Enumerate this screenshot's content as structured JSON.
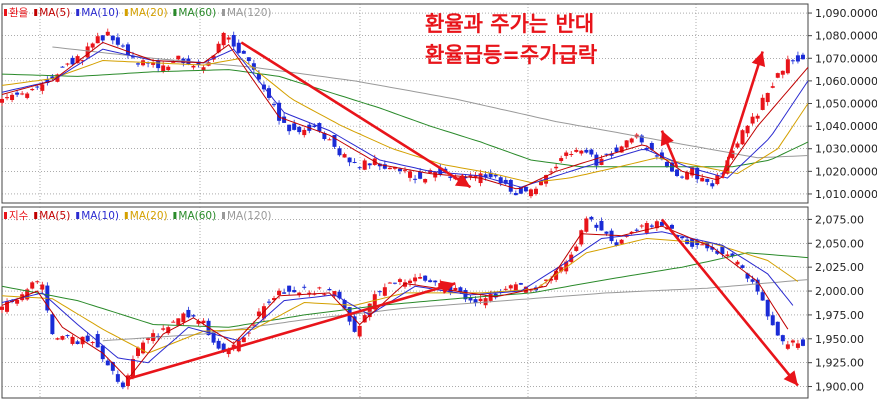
{
  "annotation": {
    "line1": "환율과 주가는 반대",
    "line2": "환율급등=주가급락",
    "color": "#e8141a"
  },
  "colors": {
    "up": "#e8141a",
    "down": "#1a2bd6",
    "ma5": "#c00000",
    "ma10": "#2b2bd0",
    "ma20": "#d4a000",
    "ma60": "#2a8a2a",
    "ma120": "#9a9a9a",
    "arrow": "#e8141a",
    "grid": "#7a7a7a"
  },
  "chart_data": [
    {
      "type": "candlestick",
      "title": "환율",
      "legend": [
        {
          "label": "환율",
          "color": "#e8141a"
        },
        {
          "label": "MA(5)",
          "color": "#c00000"
        },
        {
          "label": "MA(10)",
          "color": "#2b2bd0"
        },
        {
          "label": "MA(20)",
          "color": "#d4a000"
        },
        {
          "label": "MA(60)",
          "color": "#2a8a2a"
        },
        {
          "label": "MA(120)",
          "color": "#9a9a9a"
        }
      ],
      "ylim": [
        1006000,
        1094000
      ],
      "yticks": [
        1010000,
        1020000,
        1030000,
        1040000,
        1050000,
        1060000,
        1070000,
        1080000,
        1090000
      ],
      "ytick_labels": [
        "1,010.0000",
        "1,020.0000",
        "1,030.0000",
        "1,040.0000",
        "1,050.0000",
        "1,060.0000",
        "1,070.0000",
        "1,080.0000",
        "1,090.0000"
      ],
      "close_path": [
        [
          0,
          1052000
        ],
        [
          8,
          1055000
        ],
        [
          14,
          1056000
        ],
        [
          20,
          1062000
        ],
        [
          26,
          1068000
        ],
        [
          32,
          1070000
        ],
        [
          36,
          1078000
        ],
        [
          42,
          1080000
        ],
        [
          48,
          1074000
        ],
        [
          54,
          1068000
        ],
        [
          62,
          1066000
        ],
        [
          70,
          1070000
        ],
        [
          76,
          1066000
        ],
        [
          82,
          1068000
        ],
        [
          88,
          1080000
        ],
        [
          94,
          1074000
        ],
        [
          100,
          1064000
        ],
        [
          106,
          1052000
        ],
        [
          112,
          1040000
        ],
        [
          118,
          1037000
        ],
        [
          124,
          1040000
        ],
        [
          130,
          1034000
        ],
        [
          136,
          1026000
        ],
        [
          142,
          1023000
        ],
        [
          148,
          1024000
        ],
        [
          154,
          1022000
        ],
        [
          160,
          1019000
        ],
        [
          166,
          1017000
        ],
        [
          172,
          1020000
        ],
        [
          178,
          1018000
        ],
        [
          184,
          1016000
        ],
        [
          190,
          1018000
        ],
        [
          196,
          1017000
        ],
        [
          200,
          1014000
        ],
        [
          204,
          1011000
        ],
        [
          208,
          1011000
        ],
        [
          214,
          1015000
        ],
        [
          220,
          1022000
        ],
        [
          224,
          1028000
        ],
        [
          230,
          1030000
        ],
        [
          236,
          1024000
        ],
        [
          242,
          1028000
        ],
        [
          248,
          1034000
        ],
        [
          252,
          1036000
        ],
        [
          256,
          1030000
        ],
        [
          262,
          1026000
        ],
        [
          268,
          1018000
        ],
        [
          274,
          1020000
        ],
        [
          278,
          1016000
        ],
        [
          282,
          1014000
        ],
        [
          286,
          1020000
        ],
        [
          290,
          1030000
        ],
        [
          296,
          1040000
        ],
        [
          300,
          1046000
        ],
        [
          304,
          1056000
        ],
        [
          308,
          1062000
        ],
        [
          312,
          1068000
        ],
        [
          316,
          1070000
        ],
        [
          320,
          1070000
        ]
      ],
      "ma5_path": [
        [
          0,
          1054000
        ],
        [
          20,
          1060000
        ],
        [
          40,
          1077000
        ],
        [
          60,
          1069000
        ],
        [
          80,
          1068000
        ],
        [
          90,
          1076000
        ],
        [
          110,
          1044000
        ],
        [
          130,
          1036000
        ],
        [
          150,
          1023000
        ],
        [
          170,
          1019000
        ],
        [
          190,
          1017000
        ],
        [
          205,
          1012000
        ],
        [
          220,
          1020000
        ],
        [
          240,
          1027000
        ],
        [
          255,
          1032000
        ],
        [
          270,
          1020000
        ],
        [
          285,
          1016000
        ],
        [
          300,
          1040000
        ],
        [
          320,
          1066000
        ]
      ],
      "ma10_path": [
        [
          0,
          1055000
        ],
        [
          20,
          1060000
        ],
        [
          40,
          1074000
        ],
        [
          60,
          1069000
        ],
        [
          80,
          1068000
        ],
        [
          92,
          1074000
        ],
        [
          112,
          1046000
        ],
        [
          130,
          1038000
        ],
        [
          150,
          1025000
        ],
        [
          170,
          1020000
        ],
        [
          190,
          1018000
        ],
        [
          206,
          1013000
        ],
        [
          220,
          1018000
        ],
        [
          240,
          1025000
        ],
        [
          255,
          1030000
        ],
        [
          272,
          1022000
        ],
        [
          288,
          1017000
        ],
        [
          305,
          1035000
        ],
        [
          320,
          1060000
        ]
      ],
      "ma20_path": [
        [
          0,
          1058000
        ],
        [
          20,
          1061000
        ],
        [
          40,
          1069000
        ],
        [
          60,
          1068000
        ],
        [
          80,
          1067000
        ],
        [
          95,
          1070000
        ],
        [
          115,
          1052000
        ],
        [
          135,
          1040000
        ],
        [
          155,
          1030000
        ],
        [
          175,
          1023000
        ],
        [
          195,
          1019000
        ],
        [
          210,
          1015000
        ],
        [
          225,
          1017000
        ],
        [
          245,
          1022000
        ],
        [
          260,
          1026000
        ],
        [
          278,
          1022000
        ],
        [
          292,
          1019000
        ],
        [
          308,
          1030000
        ],
        [
          320,
          1050000
        ]
      ],
      "ma60_path": [
        [
          0,
          1063000
        ],
        [
          30,
          1062000
        ],
        [
          60,
          1064000
        ],
        [
          90,
          1065000
        ],
        [
          110,
          1062000
        ],
        [
          130,
          1055000
        ],
        [
          150,
          1048000
        ],
        [
          170,
          1040000
        ],
        [
          190,
          1033000
        ],
        [
          210,
          1025000
        ],
        [
          230,
          1022000
        ],
        [
          250,
          1022000
        ],
        [
          270,
          1022000
        ],
        [
          290,
          1022000
        ],
        [
          305,
          1025000
        ],
        [
          320,
          1033000
        ]
      ],
      "ma120_path": [
        [
          20,
          1075000
        ],
        [
          60,
          1070000
        ],
        [
          100,
          1066000
        ],
        [
          140,
          1060000
        ],
        [
          180,
          1052000
        ],
        [
          220,
          1042000
        ],
        [
          260,
          1034000
        ],
        [
          300,
          1026000
        ],
        [
          320,
          1027000
        ]
      ],
      "arrows": [
        {
          "from": [
            95,
            1077000
          ],
          "to": [
            186,
            1013000
          ]
        },
        {
          "from": [
            268,
            1022000
          ],
          "to": [
            262,
            1038000
          ],
          "kind": "annotation-pointer"
        },
        {
          "from": [
            286,
            1017000
          ],
          "to": [
            302,
            1073000
          ]
        }
      ]
    },
    {
      "type": "candlestick",
      "title": "지수",
      "legend": [
        {
          "label": "지수",
          "color": "#e8141a"
        },
        {
          "label": "MA(5)",
          "color": "#c00000"
        },
        {
          "label": "MA(10)",
          "color": "#2b2bd0"
        },
        {
          "label": "MA(20)",
          "color": "#d4a000"
        },
        {
          "label": "MA(60)",
          "color": "#2a8a2a"
        },
        {
          "label": "MA(120)",
          "color": "#9a9a9a"
        }
      ],
      "ylim": [
        1888000,
        2088000
      ],
      "yticks": [
        1900000,
        1925000,
        1950000,
        1975000,
        2000000,
        2025000,
        2050000,
        2075000
      ],
      "ytick_labels": [
        "1,900.00",
        "1,925.00",
        "1,950.00",
        "1,975.00",
        "2,000.00",
        "2,025.00",
        "2,050.00",
        "2,075.00"
      ],
      "close_path": [
        [
          0,
          1983000
        ],
        [
          6,
          1992000
        ],
        [
          12,
          2007000
        ],
        [
          16,
          2006000
        ],
        [
          20,
          1955000
        ],
        [
          28,
          1948000
        ],
        [
          36,
          1950000
        ],
        [
          42,
          1922000
        ],
        [
          48,
          1900000
        ],
        [
          54,
          1940000
        ],
        [
          60,
          1952000
        ],
        [
          66,
          1962000
        ],
        [
          72,
          1975000
        ],
        [
          80,
          1965000
        ],
        [
          86,
          1940000
        ],
        [
          92,
          1940000
        ],
        [
          98,
          1960000
        ],
        [
          104,
          1985000
        ],
        [
          110,
          2000000
        ],
        [
          118,
          2002000
        ],
        [
          126,
          2000000
        ],
        [
          134,
          1995000
        ],
        [
          140,
          1955000
        ],
        [
          148,
          1995000
        ],
        [
          156,
          2010000
        ],
        [
          164,
          2012000
        ],
        [
          172,
          2008000
        ],
        [
          180,
          2000000
        ],
        [
          186,
          1990000
        ],
        [
          192,
          1990000
        ],
        [
          198,
          2000000
        ],
        [
          204,
          2004000
        ],
        [
          210,
          2002000
        ],
        [
          216,
          2008000
        ],
        [
          222,
          2025000
        ],
        [
          228,
          2050000
        ],
        [
          232,
          2075000
        ],
        [
          238,
          2065000
        ],
        [
          244,
          2050000
        ],
        [
          250,
          2060000
        ],
        [
          256,
          2070000
        ],
        [
          262,
          2070000
        ],
        [
          268,
          2060000
        ],
        [
          274,
          2050000
        ],
        [
          280,
          2045000
        ],
        [
          286,
          2040000
        ],
        [
          292,
          2030000
        ],
        [
          298,
          2010000
        ],
        [
          304,
          1975000
        ],
        [
          310,
          1945000
        ]
      ],
      "ma5_path": [
        [
          0,
          1985000
        ],
        [
          14,
          2000000
        ],
        [
          24,
          1962000
        ],
        [
          40,
          1935000
        ],
        [
          50,
          1908000
        ],
        [
          64,
          1955000
        ],
        [
          76,
          1972000
        ],
        [
          92,
          1945000
        ],
        [
          110,
          1995000
        ],
        [
          130,
          1998000
        ],
        [
          142,
          1965000
        ],
        [
          160,
          2008000
        ],
        [
          180,
          2000000
        ],
        [
          196,
          1994000
        ],
        [
          216,
          2005000
        ],
        [
          230,
          2060000
        ],
        [
          246,
          2058000
        ],
        [
          262,
          2068000
        ],
        [
          282,
          2046000
        ],
        [
          300,
          2010000
        ],
        [
          312,
          1960000
        ]
      ],
      "ma10_path": [
        [
          0,
          1988000
        ],
        [
          16,
          1998000
        ],
        [
          30,
          1965000
        ],
        [
          46,
          1930000
        ],
        [
          58,
          1925000
        ],
        [
          74,
          1962000
        ],
        [
          94,
          1948000
        ],
        [
          112,
          1990000
        ],
        [
          132,
          1996000
        ],
        [
          146,
          1975000
        ],
        [
          164,
          2005000
        ],
        [
          186,
          1996000
        ],
        [
          206,
          2000000
        ],
        [
          224,
          2030000
        ],
        [
          238,
          2055000
        ],
        [
          262,
          2062000
        ],
        [
          286,
          2048000
        ],
        [
          304,
          2018000
        ],
        [
          314,
          1985000
        ]
      ],
      "ma20_path": [
        [
          0,
          1995000
        ],
        [
          20,
          1992000
        ],
        [
          40,
          1960000
        ],
        [
          58,
          1935000
        ],
        [
          80,
          1958000
        ],
        [
          100,
          1960000
        ],
        [
          120,
          1988000
        ],
        [
          140,
          1985000
        ],
        [
          160,
          1998000
        ],
        [
          190,
          1998000
        ],
        [
          212,
          2002000
        ],
        [
          232,
          2040000
        ],
        [
          256,
          2055000
        ],
        [
          282,
          2050000
        ],
        [
          304,
          2032000
        ],
        [
          316,
          2010000
        ]
      ],
      "ma60_path": [
        [
          0,
          2005000
        ],
        [
          30,
          1990000
        ],
        [
          60,
          1965000
        ],
        [
          90,
          1962000
        ],
        [
          120,
          1975000
        ],
        [
          150,
          1985000
        ],
        [
          180,
          1992000
        ],
        [
          210,
          1998000
        ],
        [
          240,
          2012000
        ],
        [
          270,
          2025000
        ],
        [
          296,
          2040000
        ],
        [
          320,
          2035000
        ]
      ],
      "ma120_path": [
        [
          40,
          1948000
        ],
        [
          80,
          1955000
        ],
        [
          120,
          1970000
        ],
        [
          160,
          1982000
        ],
        [
          200,
          1990000
        ],
        [
          240,
          1998000
        ],
        [
          280,
          2003000
        ],
        [
          320,
          2012000
        ]
      ],
      "arrows": [
        {
          "from": [
            50,
            1908000
          ],
          "to": [
            180,
            2008000
          ]
        },
        {
          "from": [
            262,
            2075000
          ],
          "to": [
            316,
            1901000
          ]
        }
      ]
    }
  ]
}
